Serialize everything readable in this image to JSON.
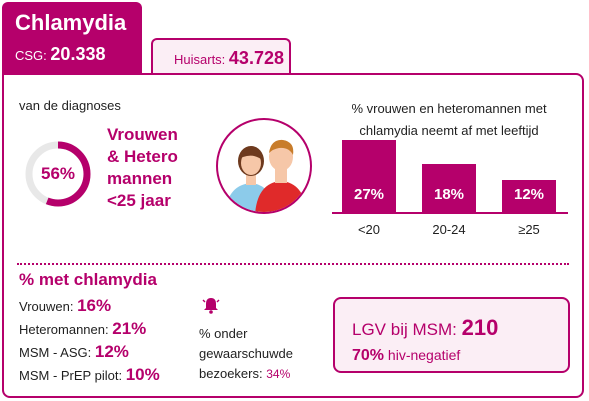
{
  "header": {
    "title": "Chlamydia",
    "csg_label": "CSG:",
    "csg_value": "20.338",
    "huisarts_label": "Huisarts:",
    "huisarts_value": "43.728"
  },
  "diagnoses": {
    "label": "van de diagnoses",
    "percent": "56%",
    "percent_fraction": 0.56,
    "group_line1": "Vrouwen",
    "group_line2": "& Hetero",
    "group_line3": "mannen",
    "group_line4": "<25 jaar"
  },
  "age_chart": {
    "title_line1": "% vrouwen en heteromannen met",
    "title_line2": "chlamydia neemt af met leeftijd"
  },
  "chart_data": {
    "type": "bar",
    "title": "% vrouwen en heteromannen met chlamydia neemt af met leeftijd",
    "categories": [
      "<20",
      "20-24",
      "≥25"
    ],
    "values": [
      27,
      18,
      12
    ],
    "value_labels": [
      "27%",
      "18%",
      "12%"
    ],
    "ylim": [
      0,
      27
    ],
    "grid": false
  },
  "chlamydia_pct": {
    "title": "% met chlamydia",
    "rows": [
      {
        "label": "Vrouwen:",
        "value": "16%"
      },
      {
        "label": "Heteromannen:",
        "value": "21%"
      },
      {
        "label": "MSM - ASG:",
        "value": "12%"
      },
      {
        "label": "MSM - PrEP pilot:",
        "value": "10%"
      }
    ]
  },
  "notified": {
    "line1": "% onder",
    "line2": "gewaarschuwde",
    "line3": "bezoekers:",
    "value": "34%",
    "icon": "bell-icon"
  },
  "lgv": {
    "label": "LGV bij MSM:",
    "value": "210",
    "sub_value": "70%",
    "sub_label": "hiv-negatief"
  },
  "colors": {
    "accent": "#b5006b",
    "accent_light": "#fbeef5",
    "ring_track": "#e8e8e8"
  }
}
